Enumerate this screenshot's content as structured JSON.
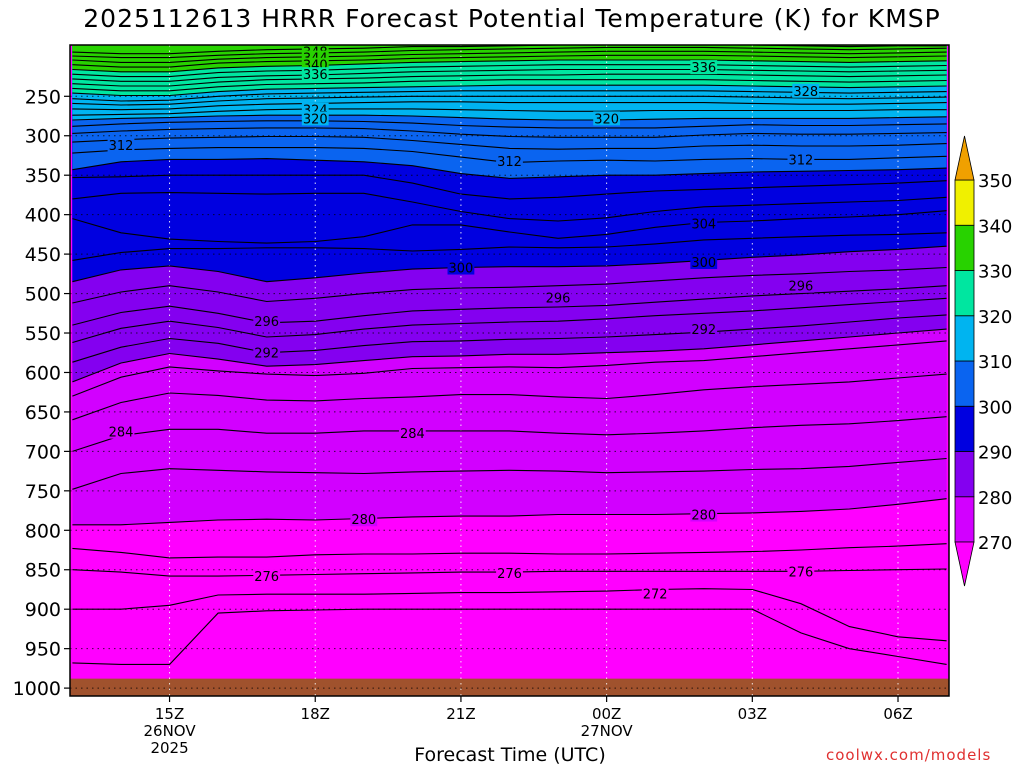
{
  "chart_data": {
    "type": "heatmap",
    "title": "2025112613 HRRR Forecast Potential Temperature (K) for KMSP",
    "xlabel": "Forecast Time (UTC)",
    "credit": "coolwx.com/models",
    "x_ticks": [
      {
        "t": 2,
        "label": "15Z",
        "sub": [
          "26NOV",
          "2025"
        ]
      },
      {
        "t": 5,
        "label": "18Z",
        "sub": []
      },
      {
        "t": 8,
        "label": "21Z",
        "sub": []
      },
      {
        "t": 11,
        "label": "00Z",
        "sub": [
          "27NOV"
        ]
      },
      {
        "t": 14,
        "label": "03Z",
        "sub": []
      },
      {
        "t": 17,
        "label": "06Z",
        "sub": []
      }
    ],
    "xlim": [
      -0.05,
      18.05
    ],
    "y_ticks": [
      250,
      300,
      350,
      400,
      450,
      500,
      550,
      600,
      650,
      700,
      750,
      800,
      850,
      900,
      950,
      1000
    ],
    "ylim": [
      1010,
      185
    ],
    "grid": true,
    "colorbar": {
      "levels": [
        270,
        280,
        290,
        300,
        310,
        320,
        330,
        340,
        350
      ],
      "colors": [
        "#ff00ff",
        "#d200ff",
        "#8400f0",
        "#0000e0",
        "#0a64f0",
        "#00b4f0",
        "#00e6a0",
        "#28d200",
        "#f0f000"
      ],
      "under_color": "#ff00ff",
      "over_color": "#f0a000"
    },
    "contour_interval": 4,
    "times": [
      0,
      1,
      2,
      3,
      4,
      5,
      6,
      7,
      8,
      9,
      10,
      11,
      12,
      13,
      14,
      15,
      16,
      17,
      18
    ],
    "isentropes": [
      {
        "theta": 272,
        "p": [
          968,
          970,
          970,
          905,
          902,
          901,
          900,
          900,
          900,
          900,
          900,
          900,
          900,
          900,
          900,
          930,
          950,
          960,
          970
        ]
      },
      {
        "theta": 274,
        "p": [
          900,
          900,
          895,
          882,
          881,
          881,
          881,
          880,
          879,
          879,
          878,
          877,
          875,
          874,
          875,
          893,
          922,
          935,
          940
        ]
      },
      {
        "theta": 276,
        "p": [
          850,
          853,
          858,
          858,
          857,
          856,
          855,
          854,
          853,
          853,
          852,
          852,
          852,
          852,
          852,
          852,
          851,
          850,
          849
        ]
      },
      {
        "theta": 278,
        "p": [
          823,
          828,
          835,
          834,
          834,
          831,
          830,
          830,
          829,
          829,
          830,
          830,
          829,
          828,
          827,
          825,
          822,
          820,
          817
        ]
      },
      {
        "theta": 280,
        "p": [
          793,
          793,
          790,
          787,
          786,
          787,
          785,
          783,
          782,
          782,
          780,
          780,
          780,
          779,
          778,
          776,
          773,
          767,
          760
        ]
      },
      {
        "theta": 282,
        "p": [
          748,
          728,
          722,
          724,
          726,
          727,
          728,
          726,
          725,
          724,
          725,
          727,
          726,
          725,
          723,
          722,
          719,
          714,
          709
        ]
      },
      {
        "theta": 284,
        "p": [
          700,
          680,
          672,
          672,
          677,
          677,
          674,
          674,
          674,
          674,
          677,
          679,
          677,
          674,
          670,
          667,
          665,
          661,
          656
        ]
      },
      {
        "theta": 286,
        "p": [
          660,
          638,
          626,
          629,
          635,
          636,
          633,
          631,
          628,
          628,
          631,
          633,
          628,
          622,
          618,
          615,
          612,
          607,
          602
        ]
      },
      {
        "theta": 288,
        "p": [
          630,
          606,
          593,
          598,
          602,
          604,
          601,
          595,
          594,
          593,
          594,
          591,
          587,
          585,
          580,
          575,
          570,
          565,
          560
        ]
      },
      {
        "theta": 290,
        "p": [
          612,
          588,
          576,
          583,
          592,
          590,
          585,
          580,
          579,
          577,
          577,
          575,
          573,
          570,
          565,
          560,
          555,
          550,
          545
        ]
      },
      {
        "theta": 292,
        "p": [
          587,
          568,
          557,
          563,
          575,
          572,
          566,
          561,
          560,
          558,
          557,
          555,
          552,
          549,
          545,
          541,
          536,
          531,
          527
        ]
      },
      {
        "theta": 294,
        "p": [
          562,
          544,
          535,
          543,
          555,
          552,
          545,
          540,
          538,
          536,
          535,
          532,
          528,
          525,
          522,
          518,
          514,
          510,
          506
        ]
      },
      {
        "theta": 296,
        "p": [
          540,
          524,
          516,
          525,
          537,
          535,
          528,
          522,
          520,
          518,
          517,
          515,
          511,
          507,
          503,
          500,
          497,
          494,
          490
        ]
      },
      {
        "theta": 298,
        "p": [
          512,
          498,
          490,
          498,
          510,
          506,
          500,
          495,
          493,
          492,
          490,
          488,
          484,
          480,
          477,
          475,
          472,
          470,
          467
        ]
      },
      {
        "theta": 300,
        "p": [
          485,
          470,
          465,
          472,
          485,
          480,
          474,
          469,
          467,
          466,
          466,
          465,
          462,
          458,
          454,
          451,
          447,
          444,
          440
        ]
      },
      {
        "theta": 302,
        "p": [
          458,
          448,
          443,
          443,
          442,
          442,
          443,
          446,
          444,
          441,
          442,
          441,
          437,
          432,
          430,
          428,
          426,
          425,
          423
        ]
      },
      {
        "theta": 304,
        "p": [
          405,
          423,
          431,
          434,
          436,
          434,
          428,
          413,
          413,
          422,
          430,
          425,
          416,
          410,
          408,
          405,
          403,
          400,
          395
        ]
      },
      {
        "theta": 306,
        "p": [
          380,
          373,
          372,
          373,
          374,
          373,
          373,
          384,
          396,
          405,
          408,
          404,
          396,
          390,
          388,
          386,
          384,
          382,
          378
        ]
      },
      {
        "theta": 308,
        "p": [
          353,
          352,
          350,
          350,
          350,
          350,
          350,
          360,
          374,
          380,
          378,
          374,
          370,
          368,
          366,
          364,
          362,
          360,
          357
        ]
      },
      {
        "theta": 310,
        "p": [
          343,
          333,
          330,
          330,
          329,
          331,
          333,
          338,
          348,
          354,
          352,
          350,
          350,
          348,
          346,
          345,
          344,
          343,
          341
        ]
      },
      {
        "theta": 312,
        "p": [
          322,
          318,
          316,
          315,
          315,
          315,
          316,
          320,
          327,
          334,
          332,
          331,
          332,
          330,
          329,
          330,
          330,
          328,
          326
        ]
      },
      {
        "theta": 314,
        "p": [
          308,
          305,
          303,
          302,
          301,
          301,
          302,
          306,
          311,
          316,
          317,
          316,
          316,
          313,
          312,
          313,
          313,
          312,
          310
        ]
      },
      {
        "theta": 316,
        "p": [
          297,
          294,
          292,
          291,
          290,
          290,
          291,
          294,
          298,
          301,
          302,
          302,
          302,
          299,
          297,
          298,
          298,
          297,
          296
        ]
      },
      {
        "theta": 318,
        "p": [
          288,
          285,
          283,
          282,
          281,
          281,
          282,
          284,
          287,
          289,
          290,
          290,
          290,
          288,
          286,
          287,
          287,
          286,
          285
        ]
      },
      {
        "theta": 320,
        "p": [
          280,
          278,
          277,
          275,
          274,
          274,
          274,
          275,
          277,
          279,
          280,
          280,
          279,
          278,
          278,
          278,
          278,
          277,
          276
        ]
      },
      {
        "theta": 322,
        "p": [
          274,
          273,
          272,
          269,
          267,
          266,
          266,
          266,
          267,
          268,
          269,
          269,
          268,
          268,
          268,
          268,
          268,
          267,
          267
        ]
      },
      {
        "theta": 324,
        "p": [
          266,
          267,
          266,
          262,
          260,
          259,
          258,
          257,
          257,
          258,
          258,
          258,
          258,
          258,
          259,
          260,
          260,
          259,
          258
        ]
      },
      {
        "theta": 326,
        "p": [
          259,
          261,
          260,
          256,
          253,
          252,
          251,
          250,
          250,
          250,
          250,
          250,
          250,
          250,
          251,
          252,
          253,
          252,
          251
        ]
      },
      {
        "theta": 328,
        "p": [
          253,
          256,
          255,
          250,
          247,
          246,
          245,
          244,
          243,
          243,
          243,
          243,
          243,
          243,
          244,
          245,
          246,
          245,
          244
        ]
      },
      {
        "theta": 330,
        "p": [
          246,
          249,
          249,
          244,
          241,
          240,
          239,
          238,
          237,
          236,
          236,
          236,
          236,
          236,
          237,
          238,
          239,
          238,
          237
        ]
      },
      {
        "theta": 332,
        "p": [
          240,
          243,
          243,
          238,
          235,
          234,
          233,
          231,
          230,
          229,
          229,
          229,
          229,
          229,
          230,
          231,
          232,
          231,
          230
        ]
      },
      {
        "theta": 334,
        "p": [
          234,
          237,
          237,
          232,
          229,
          228,
          227,
          225,
          224,
          223,
          223,
          222,
          222,
          222,
          223,
          224,
          225,
          224,
          223
        ]
      },
      {
        "theta": 336,
        "p": [
          228,
          231,
          231,
          226,
          224,
          223,
          221,
          219,
          218,
          217,
          216,
          216,
          216,
          216,
          217,
          218,
          219,
          218,
          217
        ]
      },
      {
        "theta": 338,
        "p": [
          222,
          225,
          225,
          220,
          218,
          217,
          215,
          213,
          212,
          211,
          210,
          210,
          210,
          210,
          211,
          212,
          213,
          212,
          211
        ]
      },
      {
        "theta": 340,
        "p": [
          216,
          219,
          219,
          214,
          212,
          211,
          209,
          207,
          206,
          205,
          204,
          204,
          204,
          204,
          205,
          206,
          207,
          206,
          205
        ]
      },
      {
        "theta": 342,
        "p": [
          210,
          213,
          213,
          208,
          206,
          205,
          204,
          202,
          201,
          200,
          199,
          198,
          198,
          198,
          199,
          200,
          201,
          200,
          199
        ]
      },
      {
        "theta": 344,
        "p": [
          204,
          207,
          207,
          203,
          201,
          200,
          199,
          197,
          196,
          195,
          194,
          193,
          193,
          193,
          194,
          195,
          196,
          195,
          194
        ]
      },
      {
        "theta": 346,
        "p": [
          199,
          201,
          201,
          198,
          196,
          195,
          194,
          192,
          191,
          190,
          189,
          188,
          188,
          188,
          189,
          190,
          191,
          190,
          189
        ]
      },
      {
        "theta": 348,
        "p": [
          194,
          196,
          196,
          193,
          191,
          190,
          189,
          187,
          187,
          186,
          185,
          184,
          184,
          184,
          185,
          186,
          187,
          186,
          186
        ]
      }
    ],
    "surface": {
      "p": 988,
      "color": "#a0522d"
    },
    "contour_labels": [
      {
        "text": "348",
        "t": 5.0,
        "p": 193
      },
      {
        "text": "344",
        "t": 5.0,
        "p": 201
      },
      {
        "text": "340",
        "t": 5.0,
        "p": 210
      },
      {
        "text": "336",
        "t": 5.0,
        "p": 222
      },
      {
        "text": "336",
        "t": 13.0,
        "p": 213
      },
      {
        "text": "328",
        "t": 15.1,
        "p": 243
      },
      {
        "text": "324",
        "t": 5.0,
        "p": 267
      },
      {
        "text": "320",
        "t": 5.0,
        "p": 278
      },
      {
        "text": "320",
        "t": 11.0,
        "p": 278
      },
      {
        "text": "312",
        "t": 1.0,
        "p": 312
      },
      {
        "text": "312",
        "t": 9.0,
        "p": 332
      },
      {
        "text": "312",
        "t": 15.0,
        "p": 330
      },
      {
        "text": "304",
        "t": 13.0,
        "p": 411
      },
      {
        "text": "300",
        "t": 8.0,
        "p": 467
      },
      {
        "text": "300",
        "t": 13.0,
        "p": 460
      },
      {
        "text": "296",
        "t": 10.0,
        "p": 505
      },
      {
        "text": "296",
        "t": 15.0,
        "p": 490
      },
      {
        "text": "296",
        "t": 4.0,
        "p": 535
      },
      {
        "text": "292",
        "t": 13.0,
        "p": 545
      },
      {
        "text": "292",
        "t": 4.0,
        "p": 575
      },
      {
        "text": "284",
        "t": 1.0,
        "p": 675
      },
      {
        "text": "284",
        "t": 7.0,
        "p": 677
      },
      {
        "text": "280",
        "t": 6.0,
        "p": 786
      },
      {
        "text": "280",
        "t": 13.0,
        "p": 780
      },
      {
        "text": "276",
        "t": 4.0,
        "p": 858
      },
      {
        "text": "276",
        "t": 9.0,
        "p": 854
      },
      {
        "text": "276",
        "t": 15.0,
        "p": 852
      },
      {
        "text": "272",
        "t": 12.0,
        "p": 880
      }
    ]
  }
}
